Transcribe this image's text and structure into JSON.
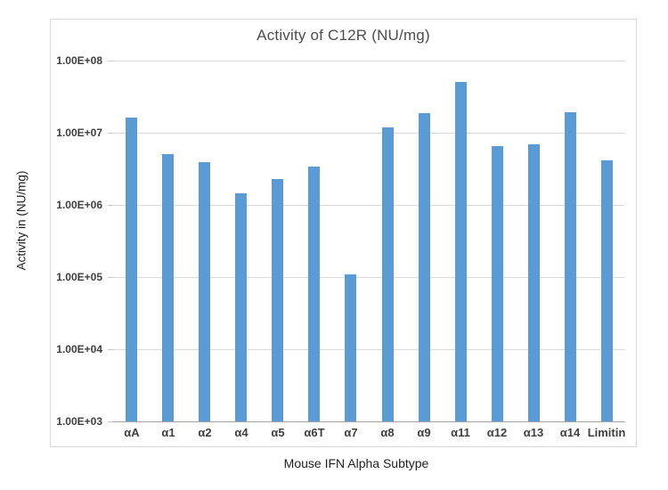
{
  "chart_data": {
    "type": "bar",
    "title": "Activity of C12R (NU/mg)",
    "xlabel": "Mouse IFN Alpha Subtype",
    "ylabel": "Activity in (NU/mg)",
    "categories": [
      "αA",
      "α1",
      "α2",
      "α4",
      "α5",
      "α6T",
      "α7",
      "α8",
      "α9",
      "α11",
      "α12",
      "α13",
      "α14",
      "Limitin"
    ],
    "values": [
      16000000,
      5000000,
      3900000,
      1450000,
      2250000,
      3400000,
      110000,
      12000000,
      18500000,
      50000000,
      6500000,
      7000000,
      19000000,
      4200000
    ],
    "series_name": "Activity of C12R (NU/mg)",
    "y_scale": "log",
    "ylim": [
      1000,
      100000000
    ],
    "y_tick_labels": [
      "1.00E+08",
      "1.00E+07",
      "1.00E+06",
      "1.00E+05",
      "1.00E+04",
      "1.00E+03"
    ],
    "grid": true,
    "legend": false,
    "bar_color": "#5B9BD5",
    "gridline_color": "#d9d9d9",
    "axis_line_color": "#a6a6a6"
  }
}
